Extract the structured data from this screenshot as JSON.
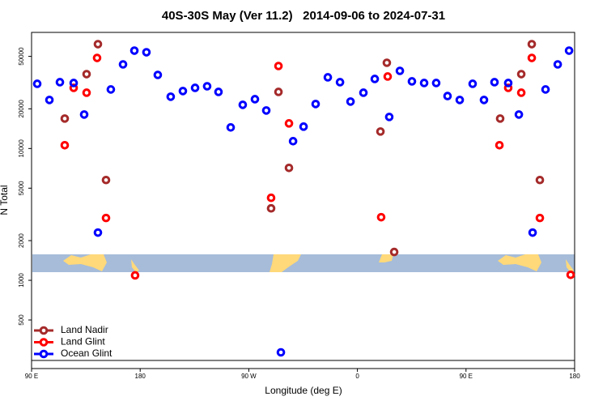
{
  "chart_data": {
    "type": "scatter",
    "title": "40S-30S May (Ver 11.2)   2014-09-06 to 2024-07-31",
    "x_label": "Longitude (deg E)",
    "y_label": "N Total",
    "xlim": [
      90,
      540
    ],
    "ylim": [
      214,
      76000
    ],
    "log_y": true,
    "legend": "bottom-left",
    "xticks": [
      {
        "value": 90,
        "label": "90 E"
      },
      180,
      {
        "value": 270,
        "label": "90 W"
      },
      {
        "value": 360,
        "label": "0"
      },
      {
        "value": 450,
        "label": "90 E"
      },
      {
        "value": 540,
        "label": "180"
      }
    ],
    "yticks": [
      500,
      1000,
      2000,
      5000,
      10000,
      20000,
      50000
    ],
    "series": [
      {
        "name": "Land Nadir",
        "color": "#a52a2a",
        "x": [
          117.5,
          135.6,
          145,
          151.7,
          294.6,
          288.5,
          303.3,
          379.1,
          384.4,
          390.5,
          478.3,
          495.8,
          504.5,
          511.2
        ],
        "values": [
          16870,
          36660,
          61850,
          5765,
          26880,
          3515,
          7125,
          13450,
          44700,
          1640,
          16870,
          36660,
          61850,
          5765
        ]
      },
      {
        "name": "Land Glint",
        "color": "#ff0000",
        "x": [
          117.5,
          124.9,
          135.6,
          144.3,
          151.7,
          175.8,
          288.5,
          294.6,
          303.3,
          379.7,
          385.1,
          477.7,
          485,
          495.8,
          504.5,
          511.2,
          536.7
        ],
        "values": [
          10590,
          28840,
          26500,
          48650,
          2970,
          1090,
          4225,
          42250,
          15500,
          3010,
          35160,
          10590,
          28840,
          26500,
          48650,
          2970,
          1100
        ]
      },
      {
        "name": "Ocean Glint",
        "color": "#0000ff",
        "x": [
          94.7,
          104.8,
          113.5,
          124.9,
          133.6,
          145,
          155.7,
          165.8,
          175.2,
          185.2,
          194.6,
          205.3,
          215.4,
          225.5,
          235.5,
          244.9,
          255,
          265,
          275.1,
          284.5,
          296.6,
          306.7,
          315.4,
          325.4,
          335.5,
          345.6,
          354.3,
          365,
          374.4,
          386.4,
          395.2,
          405.2,
          415.3,
          425.3,
          434.7,
          444.8,
          455.5,
          464.9,
          473.6,
          485,
          493.8,
          505.2,
          515.9,
          526,
          535.4
        ],
        "values": [
          30960,
          23350,
          31850,
          31400,
          18100,
          2300,
          28050,
          43450,
          55250,
          53700,
          36150,
          24700,
          27280,
          28840,
          29660,
          26880,
          14450,
          21440,
          23660,
          19420,
          284,
          11360,
          14650,
          21750,
          34670,
          31850,
          22700,
          26500,
          33700,
          17350,
          38800,
          32300,
          31400,
          31400,
          25000,
          23350,
          30960,
          23350,
          31850,
          31400,
          18100,
          2300,
          28050,
          43450,
          55250
        ]
      }
    ]
  }
}
